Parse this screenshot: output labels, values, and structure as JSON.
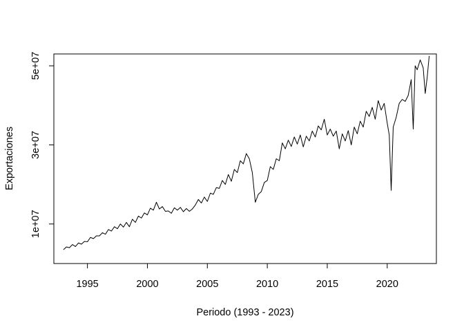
{
  "chart_data": {
    "type": "line",
    "title": "",
    "xlabel": "Periodo (1993 - 2023)",
    "ylabel": "Exportaciones",
    "xlim": [
      1992.2,
      2024.1
    ],
    "ylim": [
      0,
      53000000
    ],
    "x_ticks": [
      1995,
      2000,
      2005,
      2010,
      2015,
      2020
    ],
    "x_tick_labels": [
      "1995",
      "2000",
      "2005",
      "2010",
      "2015",
      "2020"
    ],
    "y_ticks": [
      10000000,
      30000000,
      50000000
    ],
    "y_tick_labels": [
      "1e+07",
      "3e+07",
      "5e+07"
    ],
    "grid": false,
    "line_color": "#000000",
    "series": [
      {
        "name": "",
        "x": [
          1993.0,
          1993.25,
          1993.5,
          1993.75,
          1994.0,
          1994.25,
          1994.5,
          1994.75,
          1995.0,
          1995.25,
          1995.5,
          1995.75,
          1996.0,
          1996.25,
          1996.5,
          1996.75,
          1997.0,
          1997.25,
          1997.5,
          1997.75,
          1998.0,
          1998.25,
          1998.5,
          1998.75,
          1999.0,
          1999.25,
          1999.5,
          1999.75,
          2000.0,
          2000.25,
          2000.5,
          2000.75,
          2001.0,
          2001.25,
          2001.5,
          2001.75,
          2002.0,
          2002.25,
          2002.5,
          2002.75,
          2003.0,
          2003.25,
          2003.5,
          2003.75,
          2004.0,
          2004.25,
          2004.5,
          2004.75,
          2005.0,
          2005.25,
          2005.5,
          2005.75,
          2006.0,
          2006.25,
          2006.5,
          2006.75,
          2007.0,
          2007.25,
          2007.5,
          2007.75,
          2008.0,
          2008.25,
          2008.5,
          2008.75,
          2009.0,
          2009.25,
          2009.5,
          2009.75,
          2010.0,
          2010.25,
          2010.5,
          2010.75,
          2011.0,
          2011.25,
          2011.5,
          2011.75,
          2012.0,
          2012.25,
          2012.5,
          2012.75,
          2013.0,
          2013.25,
          2013.5,
          2013.75,
          2014.0,
          2014.25,
          2014.5,
          2014.75,
          2015.0,
          2015.25,
          2015.5,
          2015.75,
          2016.0,
          2016.25,
          2016.5,
          2016.75,
          2017.0,
          2017.25,
          2017.5,
          2017.75,
          2018.0,
          2018.25,
          2018.5,
          2018.75,
          2019.0,
          2019.25,
          2019.5,
          2019.75,
          2020.0,
          2020.17,
          2020.33,
          2020.5,
          2020.75,
          2021.0,
          2021.25,
          2021.5,
          2021.75,
          2022.0,
          2022.17,
          2022.33,
          2022.5,
          2022.75,
          2023.0,
          2023.17,
          2023.33,
          2023.5
        ],
        "values": [
          3500000,
          4200000,
          4000000,
          4800000,
          4300000,
          5200000,
          4900000,
          5600000,
          5500000,
          6600000,
          6300000,
          7000000,
          7000000,
          7800000,
          7400000,
          8600000,
          8200000,
          9300000,
          8800000,
          10000000,
          9200000,
          10400000,
          9300000,
          11200000,
          10400000,
          12000000,
          11500000,
          12800000,
          12300000,
          14000000,
          13500000,
          15500000,
          13800000,
          14400000,
          13200000,
          13300000,
          12700000,
          14100000,
          13500000,
          14200000,
          13100000,
          13900000,
          13200000,
          13800000,
          14800000,
          16200000,
          15300000,
          16800000,
          15700000,
          17800000,
          17500000,
          19200000,
          19000000,
          21000000,
          20000000,
          22500000,
          20800000,
          23800000,
          23000000,
          26000000,
          25200000,
          27800000,
          26500000,
          23000000,
          15500000,
          17500000,
          18200000,
          20500000,
          21000000,
          24500000,
          23800000,
          26500000,
          26000000,
          30500000,
          29000000,
          31200000,
          29600000,
          32000000,
          30200000,
          32500000,
          29500000,
          32200000,
          31000000,
          33500000,
          32000000,
          34800000,
          33800000,
          36500000,
          32500000,
          34000000,
          32200000,
          33500000,
          29000000,
          32800000,
          31000000,
          33600000,
          30000000,
          34500000,
          32800000,
          36000000,
          34500000,
          38500000,
          37200000,
          39500000,
          36500000,
          41200000,
          38800000,
          40500000,
          35500000,
          32500000,
          18500000,
          34500000,
          37000000,
          40500000,
          41500000,
          41000000,
          42500000,
          46500000,
          34000000,
          50000000,
          49000000,
          51500000,
          49500000,
          43000000,
          47000000,
          52500000
        ]
      }
    ]
  }
}
